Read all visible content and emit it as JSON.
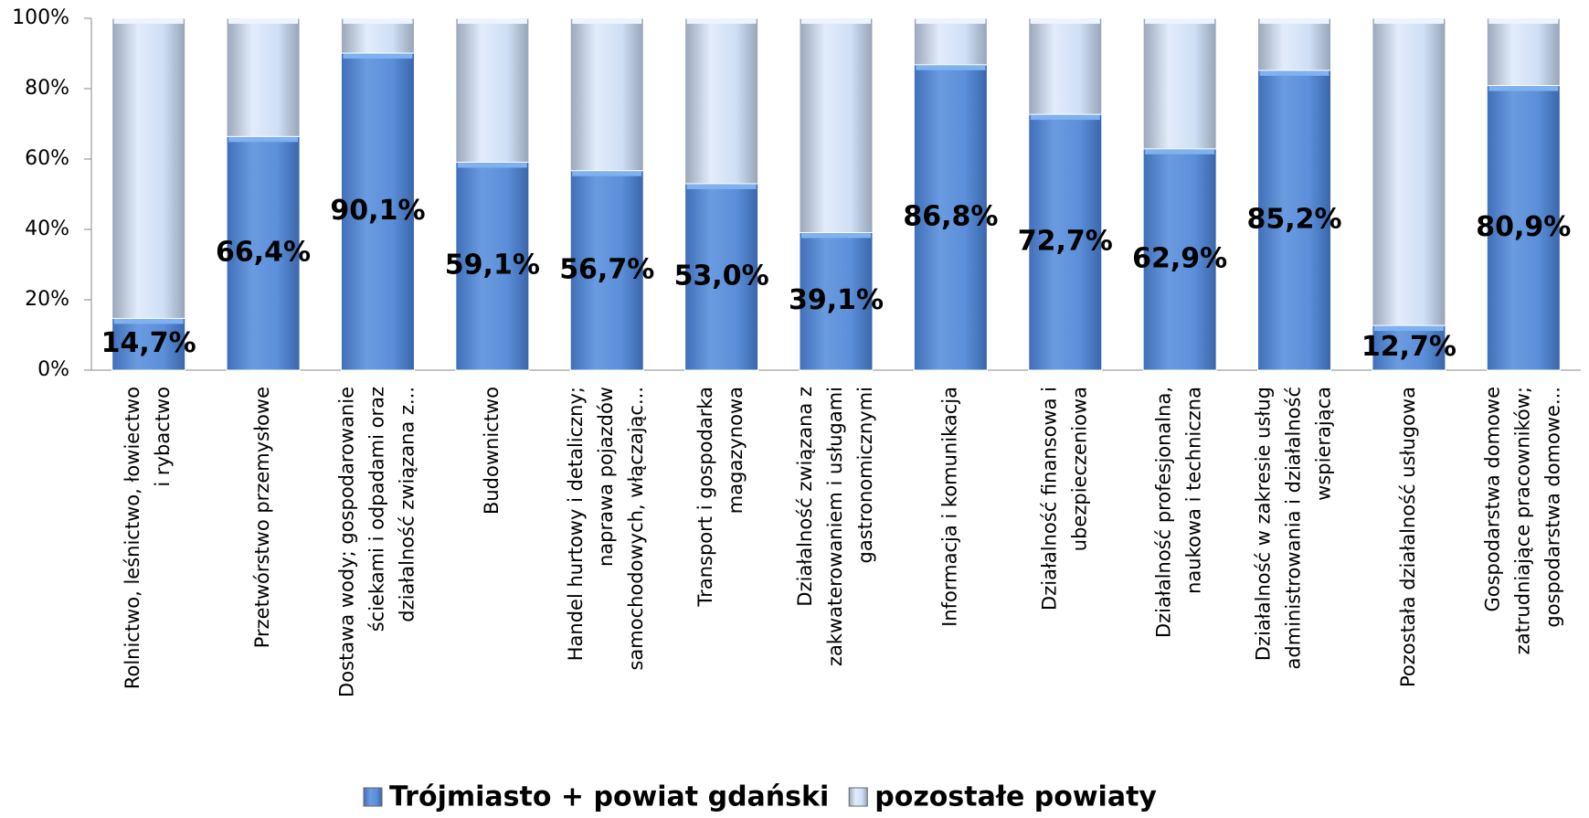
{
  "chart_data": {
    "type": "stacked_bar",
    "categories": [
      [
        "Rolnictwo, leśnictwo, łowiectwo",
        "i rybactwo"
      ],
      [
        "Przetwórstwo przemysłowe"
      ],
      [
        "Dostawa wody; gospodarowanie",
        "ściekami i odpadami oraz",
        "działalność związana z..."
      ],
      [
        "Budownictwo"
      ],
      [
        "Handel hurtowy i detaliczny;",
        "naprawa pojazdów",
        "samochodowych, włączając..."
      ],
      [
        "Transport i gospodarka",
        "magazynowa"
      ],
      [
        "Działalność związana z",
        "zakwaterowaniem i usługami",
        "gastronomicznymi"
      ],
      [
        "Informacja i komunikacja"
      ],
      [
        "Działalność finansowa i",
        "ubezpieczeniowa"
      ],
      [
        "Działalność profesjonalna,",
        "naukowa i techniczna"
      ],
      [
        "Działalność w zakresie usług",
        "administrowania i działalność",
        "wspierająca"
      ],
      [
        "Pozostała działalność usługowa"
      ],
      [
        "Gospodarstwa domowe",
        "zatrudniające pracowników;",
        "gospodarstwa domowe..."
      ]
    ],
    "series": [
      {
        "name": "Trójmiasto + powiat gdański",
        "color": "#5b8fd9",
        "values": [
          14.7,
          66.4,
          90.1,
          59.1,
          56.7,
          53.0,
          39.1,
          86.8,
          72.7,
          62.9,
          85.2,
          12.7,
          80.9
        ],
        "value_labels": [
          "14,7%",
          "66,4%",
          "90,1%",
          "59,1%",
          "56,7%",
          "53,0%",
          "39,1%",
          "86,8%",
          "72,7%",
          "62,9%",
          "85,2%",
          "12,7%",
          "80,9%"
        ]
      },
      {
        "name": "pozostałe powiaty",
        "color": "#cfdff5",
        "values": [
          85.3,
          33.6,
          9.9,
          40.9,
          43.3,
          47.0,
          60.9,
          13.2,
          27.3,
          37.1,
          14.8,
          87.3,
          19.1
        ]
      }
    ],
    "ylim": [
      0,
      100
    ],
    "yticks": [
      {
        "value": 0,
        "label": "0%"
      },
      {
        "value": 20,
        "label": "20%"
      },
      {
        "value": 40,
        "label": "40%"
      },
      {
        "value": 60,
        "label": "60%"
      },
      {
        "value": 80,
        "label": "80%"
      },
      {
        "value": 100,
        "label": "100%"
      }
    ],
    "legend": "bottom"
  }
}
